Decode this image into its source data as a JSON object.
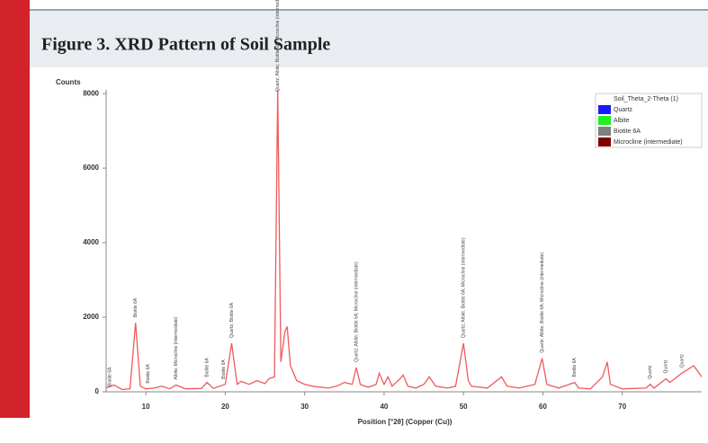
{
  "chart_data": {
    "type": "line",
    "title": "Figure 3. XRD Pattern of Soil Sample",
    "ylabel": "Counts",
    "xlabel": "Position [°2θ] (Copper (Cu))",
    "xlim": [
      5,
      80
    ],
    "ylim": [
      0,
      8100
    ],
    "xticks": [
      10,
      20,
      30,
      40,
      50,
      60,
      70
    ],
    "yticks": [
      0,
      2000,
      4000,
      6000,
      8000
    ],
    "series": [
      {
        "name": "Soil_Theta_2-Theta (1)",
        "color": "#f05a5a",
        "x": [
          5,
          6,
          7,
          8,
          8.7,
          9.3,
          10,
          11,
          12,
          13,
          13.8,
          15,
          17,
          17.7,
          18.5,
          20,
          20.8,
          21.5,
          22,
          23,
          24,
          25,
          25.5,
          26.2,
          26.6,
          27,
          27.5,
          27.8,
          28.2,
          29,
          30,
          31,
          33,
          34,
          35,
          36,
          36.5,
          37,
          38,
          39,
          39.4,
          40,
          40.5,
          41,
          42,
          42.4,
          43,
          44,
          45,
          45.7,
          46.5,
          48,
          49,
          50,
          50.6,
          51,
          53,
          54.8,
          55.5,
          57,
          59,
          59.9,
          60.5,
          62,
          64,
          64.5,
          66,
          67.5,
          68.1,
          68.5,
          70,
          73,
          73.5,
          74,
          75.5,
          76,
          77.5,
          79,
          80
        ],
        "values": [
          100,
          180,
          60,
          80,
          1850,
          150,
          80,
          100,
          150,
          80,
          180,
          80,
          90,
          250,
          90,
          200,
          1300,
          200,
          280,
          200,
          300,
          220,
          350,
          400,
          8100,
          800,
          1600,
          1750,
          700,
          300,
          200,
          150,
          100,
          150,
          250,
          200,
          650,
          200,
          120,
          200,
          500,
          200,
          400,
          150,
          350,
          450,
          150,
          100,
          200,
          400,
          150,
          100,
          150,
          1300,
          300,
          150,
          100,
          400,
          150,
          100,
          200,
          900,
          200,
          100,
          250,
          100,
          80,
          400,
          800,
          200,
          80,
          100,
          200,
          100,
          350,
          250,
          500,
          700,
          400
        ]
      }
    ],
    "legend": {
      "title": "Soil_Theta_2-Theta (1)",
      "corner": "top-right",
      "entries": [
        {
          "name": "Quartz",
          "color": "#1a1aff"
        },
        {
          "name": "Albite",
          "color": "#22ee22"
        },
        {
          "name": "Biotite 6A",
          "color": "#808080"
        },
        {
          "name": "Microcline (intermediate)",
          "color": "#800000"
        }
      ]
    },
    "annotations": [
      {
        "x": 5.5,
        "text": "Biotite 6A"
      },
      {
        "x": 8.7,
        "text": "Biotite 6A"
      },
      {
        "x": 10.3,
        "text": "Biotite 6A"
      },
      {
        "x": 13.8,
        "text": "Albite; Microcline (intermediate)"
      },
      {
        "x": 17.7,
        "text": "Biotite 6A"
      },
      {
        "x": 19.8,
        "text": "Biotite 6A"
      },
      {
        "x": 20.8,
        "text": "Quartz; Biotite 6A"
      },
      {
        "x": 26.6,
        "text": "Quartz; Albite; Biotite 6A; Microcline (intermediate)"
      },
      {
        "x": 36.5,
        "text": "Quartz; Albite; Biotite 6A; Microcline (intermediate)"
      },
      {
        "x": 50,
        "text": "Quartz; Albite; Biotite 6A; Microcline (intermediate)"
      },
      {
        "x": 59.9,
        "text": "Quartz; Albite; Biotite 6A; Microcline (intermediate)"
      },
      {
        "x": 64,
        "text": "Biotite 6A"
      },
      {
        "x": 73.5,
        "text": "Quartz"
      },
      {
        "x": 75.5,
        "text": "Quartz"
      },
      {
        "x": 77.5,
        "text": "Quartz"
      }
    ]
  }
}
